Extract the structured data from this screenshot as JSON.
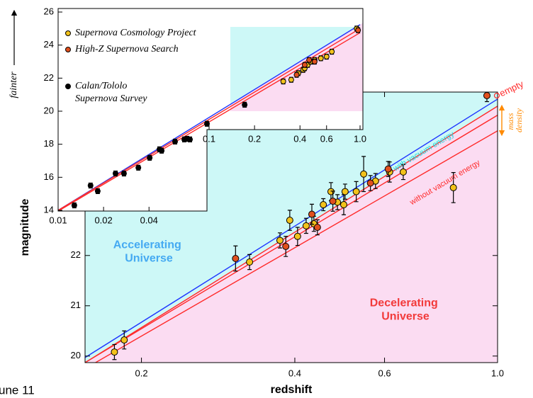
{
  "caption": "une 11",
  "chart_data": [
    {
      "type": "scatter",
      "xlabel": "redshift",
      "ylabel": "magnitude",
      "xscale": "log",
      "xlim": [
        0.155,
        1.0
      ],
      "ylim": [
        19.87,
        25.25
      ],
      "xticks": [
        0.2,
        0.4,
        0.6,
        {
          "value": 1,
          "label": "1.0"
        }
      ],
      "yticks": [
        20,
        21,
        22
      ],
      "series": [
        {
          "color": "#f2c21b",
          "x": [
            0.177,
            0.185,
            0.326,
            0.374,
            0.391,
            0.405,
            0.421,
            0.436,
            0.455,
            0.471,
            0.485,
            0.499,
            0.502,
            0.528,
            0.546,
            0.576,
            0.614,
            0.653,
            0.819
          ],
          "values": [
            20.08,
            20.32,
            21.87,
            22.3,
            22.7,
            22.38,
            22.59,
            22.63,
            23.01,
            23.27,
            23.06,
            23.01,
            23.27,
            23.27,
            23.62,
            23.48,
            23.66,
            23.66,
            23.35
          ],
          "errors": [
            0.15,
            0.18,
            0.15,
            0.15,
            0.2,
            0.18,
            0.15,
            0.15,
            0.12,
            0.18,
            0.15,
            0.2,
            0.15,
            0.2,
            0.35,
            0.15,
            0.2,
            0.15,
            0.3
          ]
        },
        {
          "color": "#e0501e",
          "x": [
            0.306,
            0.384,
            0.432,
            0.443,
            0.475,
            0.563,
            0.61,
            0.953
          ],
          "values": [
            21.94,
            22.18,
            22.82,
            22.56,
            23.08,
            23.44,
            23.72,
            25.18
          ],
          "errors": [
            0.25,
            0.2,
            0.2,
            0.15,
            0.2,
            0.15,
            0.15,
            0.12
          ]
        }
      ],
      "lines": [
        {
          "color": "#1f35ff",
          "x": [
            0.155,
            1.0
          ],
          "values": [
            19.97,
            25.11
          ]
        },
        {
          "color": "#ff2a2a",
          "x": [
            0.155,
            1.0
          ],
          "values": [
            19.87,
            24.97
          ]
        },
        {
          "color": "#ff2a2a",
          "x": [
            0.155,
            1.0
          ],
          "values": [
            19.87,
            24.79
          ]
        },
        {
          "color": "#ff2a2a",
          "x": [
            0.155,
            1.0
          ],
          "values": [
            19.75,
            24.48
          ]
        }
      ],
      "annotations": [
        "Accelerating Universe",
        "Decelerating Universe",
        "with vacuum energy",
        "without vacuum energy",
        "empty",
        "mass density"
      ]
    },
    {
      "type": "scatter",
      "ylabel": "fainter",
      "xscale": "log",
      "xlim": [
        0.01,
        1.0
      ],
      "ylim": [
        14,
        26
      ],
      "xticks": [
        0.01,
        0.02,
        0.04,
        0.1,
        0.2,
        0.4,
        0.6,
        {
          "value": 1,
          "label": "1.0"
        }
      ],
      "yticks": [
        14,
        16,
        18,
        20,
        22,
        24,
        26
      ],
      "series": [
        {
          "name": "Supernova Cosmology Project",
          "color": "#f2c21b",
          "x": [
            0.31,
            0.35,
            0.39,
            0.42,
            0.43,
            0.45,
            0.47,
            0.5,
            0.55,
            0.6,
            0.65,
            0.95
          ],
          "values": [
            21.8,
            21.9,
            22.3,
            22.5,
            22.6,
            22.8,
            23.0,
            23.1,
            23.2,
            23.3,
            23.6,
            25.0
          ],
          "errors": [
            0.15,
            0.15,
            0.15,
            0.15,
            0.15,
            0.15,
            0.15,
            0.15,
            0.15,
            0.15,
            0.15,
            0.15
          ]
        },
        {
          "name": "High-Z Supernova Search",
          "color": "#e0501e",
          "x": [
            0.38,
            0.43,
            0.46,
            0.5,
            0.97
          ],
          "values": [
            22.2,
            22.8,
            23.1,
            23.0,
            24.9
          ],
          "errors": [
            0.15,
            0.15,
            0.15,
            0.15,
            0.15
          ]
        },
        {
          "name": "Calan/Tololo Supernova Survey",
          "color": "#000000",
          "x": [
            0.0128,
            0.0164,
            0.0183,
            0.024,
            0.0273,
            0.034,
            0.0404,
            0.0469,
            0.0485,
            0.0595,
            0.0685,
            0.0715,
            0.0747,
            0.0968,
            0.172
          ],
          "values": [
            14.3,
            15.5,
            15.16,
            16.23,
            16.23,
            16.58,
            17.18,
            17.69,
            17.61,
            18.16,
            18.29,
            18.33,
            18.29,
            19.24,
            20.39
          ],
          "errors": [
            0.15,
            0.15,
            0.15,
            0.15,
            0.15,
            0.15,
            0.15,
            0.15,
            0.15,
            0.15,
            0.15,
            0.15,
            0.15,
            0.15,
            0.15
          ]
        }
      ],
      "lines": [
        {
          "color": "#1f35ff",
          "x": [
            0.01,
            1.0
          ],
          "values": [
            14.0,
            25.24
          ]
        },
        {
          "color": "#ff2a2a",
          "x": [
            0.01,
            1.0
          ],
          "values": [
            14.0,
            25.0
          ]
        },
        {
          "color": "#ff2a2a",
          "x": [
            0.01,
            1.0
          ],
          "values": [
            13.95,
            24.75
          ]
        }
      ]
    }
  ]
}
